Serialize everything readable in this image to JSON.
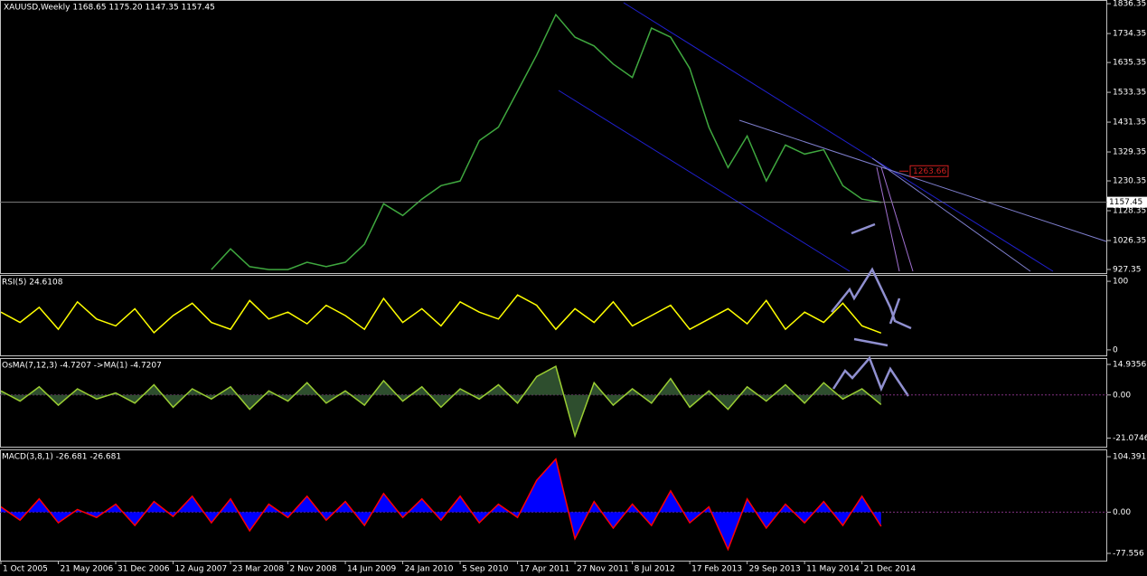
{
  "chart_data": [
    {
      "type": "line",
      "title": "XAUUSD,Weekly  1168.65  1175.20  1147.35  1157.45",
      "color": "#3fa83f",
      "categories": [
        "1 Oct 2005",
        null,
        null,
        "21 May 2006",
        null,
        null,
        "31 Dec 2006",
        null,
        null,
        "12 Aug 2007",
        null,
        null,
        "23 Mar 2008",
        null,
        null,
        "2 Nov 2008",
        null,
        null,
        "14 Jun 2009",
        null,
        null,
        "24 Jan 2010",
        null,
        null,
        "5 Sep 2010",
        null,
        null,
        "17 Apr 2011",
        null,
        null,
        "27 Nov 2011",
        null,
        null,
        "8 Jul 2012",
        null,
        null,
        "17 Feb 2013",
        null,
        null,
        "29 Sep 2013",
        null,
        null,
        "11 May 2014",
        null,
        null,
        "21 Dec 2014",
        null
      ],
      "values": [
        null,
        null,
        null,
        null,
        null,
        null,
        null,
        null,
        null,
        null,
        null,
        927,
        998,
        937,
        927,
        927,
        952,
        937,
        952,
        1014,
        1152,
        1112,
        1168,
        1214,
        1230,
        1368,
        1414,
        1537,
        1661,
        1799,
        1722,
        1692,
        1630,
        1584,
        1753,
        1722,
        1615,
        1414,
        1276,
        1384,
        1230,
        1353,
        1322,
        1337,
        1214,
        1168,
        1157
      ],
      "ylim": [
        915,
        1846
      ],
      "yticks": [
        1836.35,
        1734.35,
        1635.35,
        1533.35,
        1431.35,
        1329.35,
        1230.35,
        1128.35,
        1026.35,
        927.35
      ],
      "price_label": 1157.45,
      "level_label": 1263.66
    },
    {
      "type": "line",
      "title": "RSI(5) 24.6108",
      "color": "#ffff00",
      "values": [
        55,
        40,
        62,
        30,
        70,
        45,
        35,
        60,
        25,
        50,
        68,
        40,
        30,
        72,
        45,
        55,
        38,
        65,
        50,
        30,
        75,
        40,
        60,
        35,
        70,
        55,
        45,
        80,
        65,
        30,
        60,
        40,
        70,
        35,
        50,
        65,
        30,
        45,
        60,
        38,
        72,
        30,
        55,
        40,
        68,
        35,
        24.6
      ],
      "ylim": [
        -8,
        108
      ],
      "yticks": [
        100,
        0
      ]
    },
    {
      "type": "area",
      "title": "OsMA(7,12,3) -4.7207  ->MA(1) -4.7207",
      "color": "#2e4e2e",
      "line_color": "#9acd32",
      "values": [
        2,
        -3,
        4,
        -5,
        3,
        -2,
        1,
        -4,
        5,
        -6,
        3,
        -2,
        4,
        -7,
        2,
        -3,
        6,
        -4,
        2,
        -5,
        7,
        -3,
        4,
        -6,
        3,
        -2,
        5,
        -4,
        9,
        14,
        -20,
        6,
        -5,
        3,
        -4,
        8,
        -6,
        2,
        -7,
        4,
        -3,
        5,
        -4,
        6,
        -2,
        3,
        -4.72
      ],
      "ylim": [
        -25.3,
        17.6
      ],
      "yticks": [
        14.9356,
        {
          "value": 0,
          "label": "0.00"
        },
        -21.0746
      ]
    },
    {
      "type": "area",
      "title": "MACD(3,8,1) -26.681 -26.681",
      "color": "#0000ff",
      "line_color": "#ff0000",
      "values": [
        10,
        -15,
        25,
        -20,
        5,
        -10,
        15,
        -25,
        20,
        -8,
        30,
        -20,
        25,
        -35,
        15,
        -10,
        30,
        -15,
        20,
        -25,
        35,
        -10,
        25,
        -15,
        30,
        -20,
        15,
        -10,
        60,
        100,
        -50,
        20,
        -30,
        15,
        -25,
        40,
        -20,
        10,
        -70,
        25,
        -30,
        15,
        -20,
        20,
        -25,
        30,
        -26.68
      ],
      "ylim": [
        -91.2,
        116.4
      ],
      "yticks": [
        104.391,
        {
          "value": 0,
          "label": "0.00"
        },
        -77.556
      ]
    }
  ]
}
